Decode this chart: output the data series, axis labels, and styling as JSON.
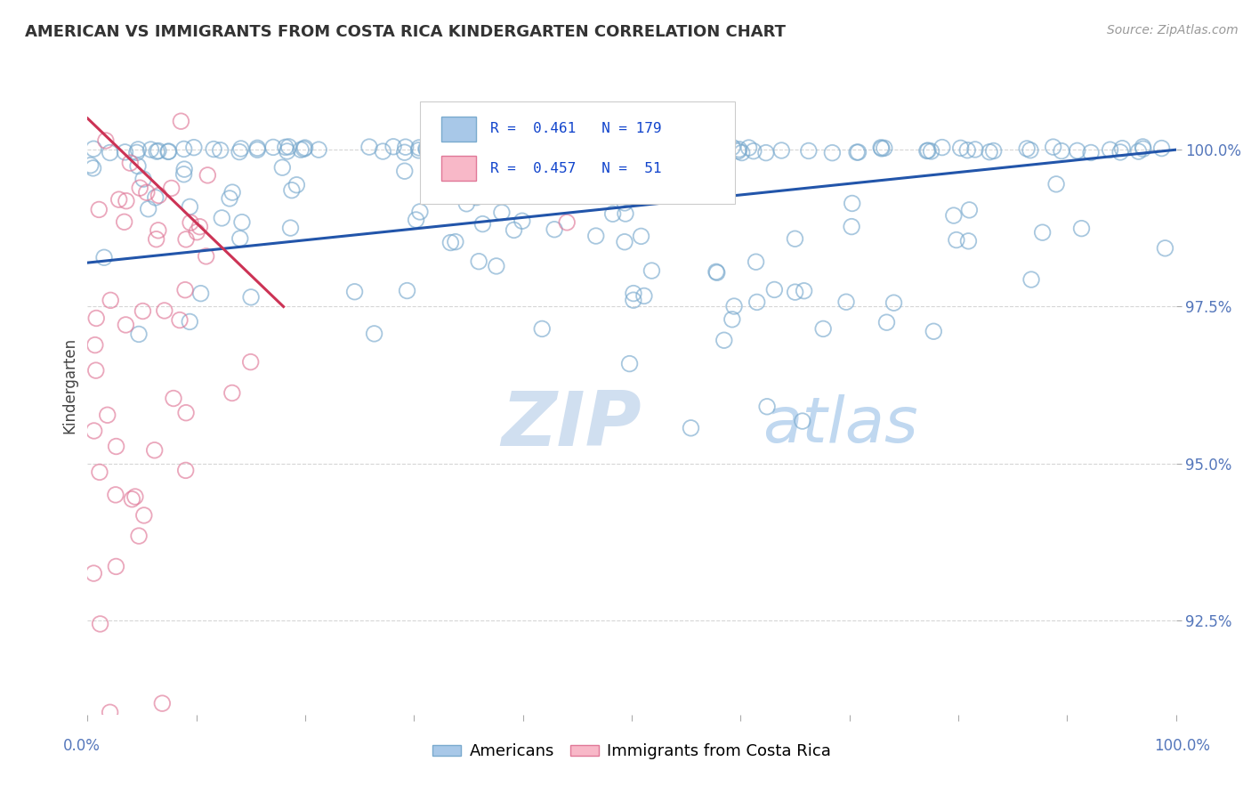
{
  "title": "AMERICAN VS IMMIGRANTS FROM COSTA RICA KINDERGARTEN CORRELATION CHART",
  "source": "Source: ZipAtlas.com",
  "ylabel": "Kindergarten",
  "yticks": [
    92.5,
    95.0,
    97.5,
    100.0
  ],
  "ytick_labels": [
    "92.5%",
    "95.0%",
    "97.5%",
    "100.0%"
  ],
  "xlim": [
    0,
    1
  ],
  "ylim": [
    91.0,
    101.5
  ],
  "watermark_zip": "ZIP",
  "watermark_atlas": "atlas",
  "blue_color": "#a8c8e8",
  "blue_edge_color": "#7aaace",
  "pink_color": "#f8b8c8",
  "pink_edge_color": "#e07898",
  "trendline_blue_color": "#2255aa",
  "trendline_pink_color": "#cc3355",
  "bg_color": "#ffffff",
  "grid_color": "#cccccc",
  "title_color": "#333333",
  "axis_label_color": "#5577bb",
  "watermark_color": "#d0dff0",
  "watermark_atlas_color": "#c0d8f0",
  "blue_trendline_x": [
    0.0,
    1.0
  ],
  "blue_trendline_y": [
    98.2,
    100.0
  ],
  "pink_trendline_x": [
    0.0,
    0.18
  ],
  "pink_trendline_y": [
    100.5,
    97.5
  ],
  "legend_blue_label": "R =  0.461   N = 179",
  "legend_pink_label": "R =  0.457   N =  51",
  "legend_blue_color": "#a8c8e8",
  "legend_pink_color": "#f8b8c8",
  "bottom_legend_blue": "Americans",
  "bottom_legend_pink": "Immigrants from Costa Rica"
}
